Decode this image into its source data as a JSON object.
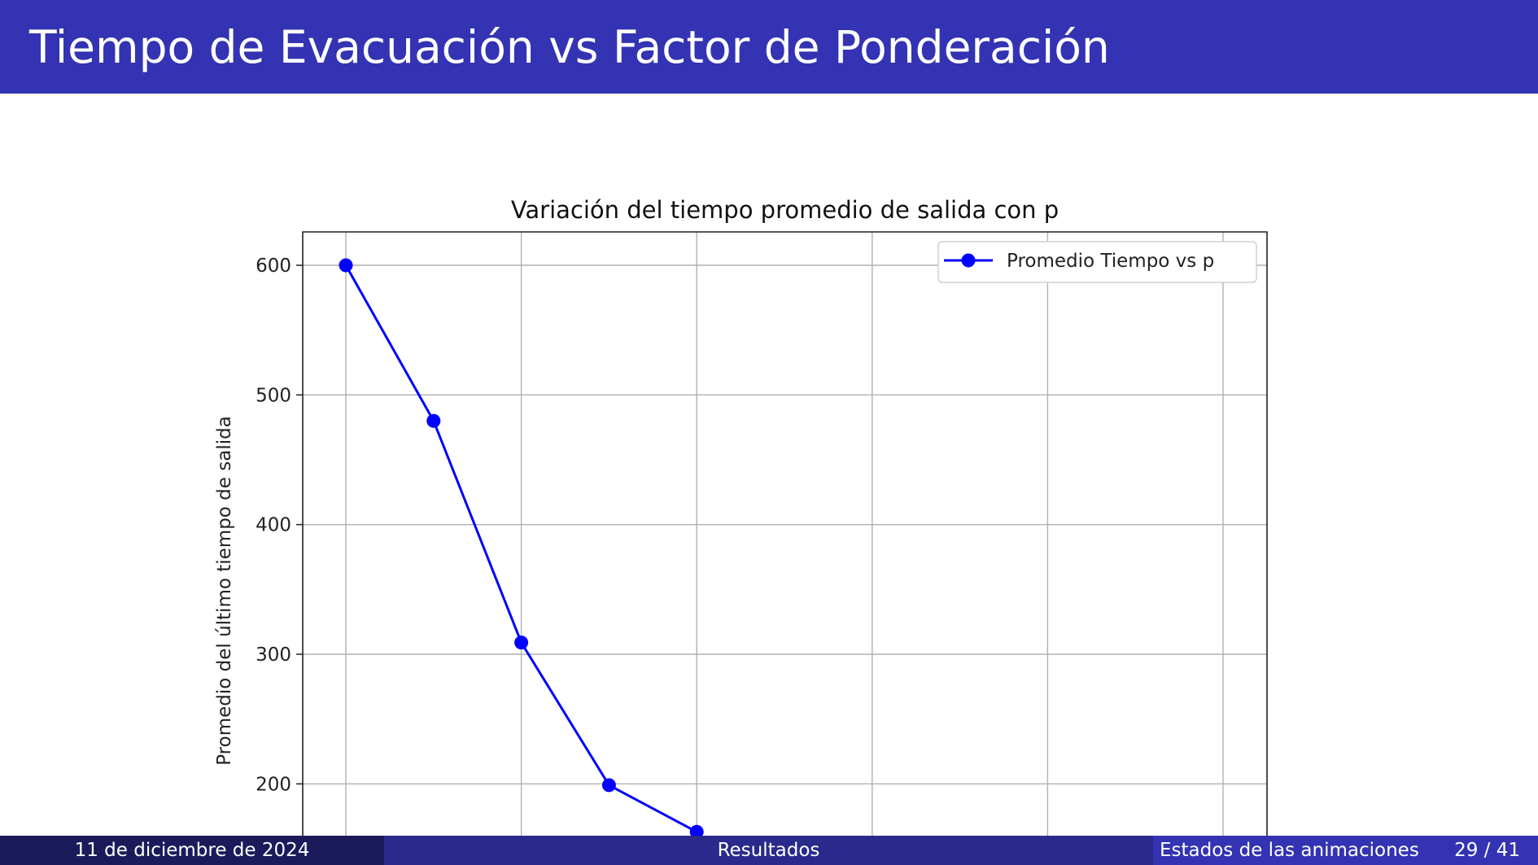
{
  "slide": {
    "title": "Tiempo de Evacuación vs Factor de Ponderación"
  },
  "footer": {
    "date": "11 de diciembre de 2024",
    "section": "Resultados",
    "subsection": "Estados de las animaciones",
    "page": "29 / 41"
  },
  "colors": {
    "header_bg": "#3333b3",
    "footer_dark": "#1b1b5c",
    "footer_mid": "#2a2a8c",
    "series": "#0000ff"
  },
  "chart_data": {
    "type": "line",
    "title": "Variación del tiempo promedio de salida con p",
    "xlabel": "",
    "ylabel": "Promedio del último tiempo de salida",
    "x": [
      0,
      0.5,
      1,
      1.5,
      2
    ],
    "series": [
      {
        "name": "Promedio Tiempo vs p",
        "color": "#0000ff",
        "marker": "circle",
        "values": [
          600,
          480,
          309,
          199,
          163
        ]
      }
    ],
    "yticks": [
      200,
      300,
      400,
      500,
      600
    ],
    "ylim": [
      110,
      626
    ],
    "xlim": [
      -0.25,
      5.25
    ],
    "x_gridlines": [
      0,
      1,
      2,
      3,
      4,
      5
    ],
    "grid": true,
    "legend": "top-right"
  }
}
